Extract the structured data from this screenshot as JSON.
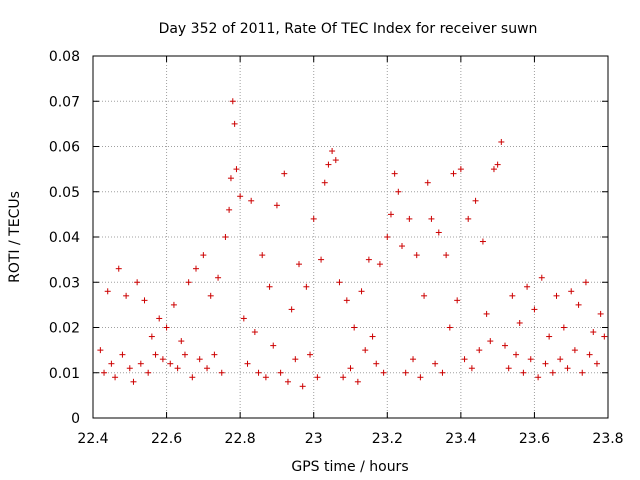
{
  "chart_data": {
    "type": "scatter",
    "title": "Day 352 of 2011, Rate Of TEC Index for receiver suwn",
    "xlabel": "GPS time / hours",
    "ylabel": "ROTI / TECUs",
    "xlim": [
      22.4,
      23.8
    ],
    "ylim": [
      0,
      0.08
    ],
    "xticks": [
      "22.4",
      "22.6",
      "22.8",
      "23",
      "23.2",
      "23.4",
      "23.6",
      "23.8"
    ],
    "yticks": [
      "0",
      "0.01",
      "0.02",
      "0.03",
      "0.04",
      "0.05",
      "0.06",
      "0.07",
      "0.08"
    ],
    "grid": true,
    "marker": "plus",
    "series_color": "#cc0000",
    "series": [
      {
        "points": [
          [
            22.42,
            0.015
          ],
          [
            22.43,
            0.01
          ],
          [
            22.44,
            0.028
          ],
          [
            22.45,
            0.012
          ],
          [
            22.46,
            0.009
          ],
          [
            22.47,
            0.033
          ],
          [
            22.48,
            0.014
          ],
          [
            22.49,
            0.027
          ],
          [
            22.5,
            0.011
          ],
          [
            22.51,
            0.008
          ],
          [
            22.52,
            0.03
          ],
          [
            22.53,
            0.012
          ],
          [
            22.54,
            0.026
          ],
          [
            22.55,
            0.01
          ],
          [
            22.56,
            0.018
          ],
          [
            22.57,
            0.014
          ],
          [
            22.58,
            0.022
          ],
          [
            22.59,
            0.013
          ],
          [
            22.6,
            0.02
          ],
          [
            22.61,
            0.012
          ],
          [
            22.62,
            0.025
          ],
          [
            22.63,
            0.011
          ],
          [
            22.64,
            0.017
          ],
          [
            22.65,
            0.014
          ],
          [
            22.66,
            0.03
          ],
          [
            22.67,
            0.009
          ],
          [
            22.68,
            0.033
          ],
          [
            22.69,
            0.013
          ],
          [
            22.7,
            0.036
          ],
          [
            22.71,
            0.011
          ],
          [
            22.72,
            0.027
          ],
          [
            22.73,
            0.014
          ],
          [
            22.74,
            0.031
          ],
          [
            22.75,
            0.01
          ],
          [
            22.76,
            0.04
          ],
          [
            22.77,
            0.046
          ],
          [
            22.775,
            0.053
          ],
          [
            22.78,
            0.07
          ],
          [
            22.785,
            0.065
          ],
          [
            22.79,
            0.055
          ],
          [
            22.8,
            0.049
          ],
          [
            22.81,
            0.022
          ],
          [
            22.82,
            0.012
          ],
          [
            22.83,
            0.048
          ],
          [
            22.84,
            0.019
          ],
          [
            22.85,
            0.01
          ],
          [
            22.86,
            0.036
          ],
          [
            22.87,
            0.009
          ],
          [
            22.88,
            0.029
          ],
          [
            22.89,
            0.016
          ],
          [
            22.9,
            0.047
          ],
          [
            22.91,
            0.01
          ],
          [
            22.92,
            0.054
          ],
          [
            22.93,
            0.008
          ],
          [
            22.94,
            0.024
          ],
          [
            22.95,
            0.013
          ],
          [
            22.96,
            0.034
          ],
          [
            22.97,
            0.007
          ],
          [
            22.98,
            0.029
          ],
          [
            22.99,
            0.014
          ],
          [
            23.0,
            0.044
          ],
          [
            23.01,
            0.009
          ],
          [
            23.02,
            0.035
          ],
          [
            23.03,
            0.052
          ],
          [
            23.04,
            0.056
          ],
          [
            23.05,
            0.059
          ],
          [
            23.06,
            0.057
          ],
          [
            23.07,
            0.03
          ],
          [
            23.08,
            0.009
          ],
          [
            23.09,
            0.026
          ],
          [
            23.1,
            0.011
          ],
          [
            23.11,
            0.02
          ],
          [
            23.12,
            0.008
          ],
          [
            23.13,
            0.028
          ],
          [
            23.14,
            0.015
          ],
          [
            23.15,
            0.035
          ],
          [
            23.16,
            0.018
          ],
          [
            23.17,
            0.012
          ],
          [
            23.18,
            0.034
          ],
          [
            23.19,
            0.01
          ],
          [
            23.2,
            0.04
          ],
          [
            23.21,
            0.045
          ],
          [
            23.22,
            0.054
          ],
          [
            23.23,
            0.05
          ],
          [
            23.24,
            0.038
          ],
          [
            23.25,
            0.01
          ],
          [
            23.26,
            0.044
          ],
          [
            23.27,
            0.013
          ],
          [
            23.28,
            0.036
          ],
          [
            23.29,
            0.009
          ],
          [
            23.3,
            0.027
          ],
          [
            23.31,
            0.052
          ],
          [
            23.32,
            0.044
          ],
          [
            23.33,
            0.012
          ],
          [
            23.34,
            0.041
          ],
          [
            23.35,
            0.01
          ],
          [
            23.36,
            0.036
          ],
          [
            23.37,
            0.02
          ],
          [
            23.38,
            0.054
          ],
          [
            23.39,
            0.026
          ],
          [
            23.4,
            0.055
          ],
          [
            23.41,
            0.013
          ],
          [
            23.42,
            0.044
          ],
          [
            23.43,
            0.011
          ],
          [
            23.44,
            0.048
          ],
          [
            23.45,
            0.015
          ],
          [
            23.46,
            0.039
          ],
          [
            23.47,
            0.023
          ],
          [
            23.48,
            0.017
          ],
          [
            23.49,
            0.055
          ],
          [
            23.5,
            0.056
          ],
          [
            23.51,
            0.061
          ],
          [
            23.52,
            0.016
          ],
          [
            23.53,
            0.011
          ],
          [
            23.54,
            0.027
          ],
          [
            23.55,
            0.014
          ],
          [
            23.56,
            0.021
          ],
          [
            23.57,
            0.01
          ],
          [
            23.58,
            0.029
          ],
          [
            23.59,
            0.013
          ],
          [
            23.6,
            0.024
          ],
          [
            23.61,
            0.009
          ],
          [
            23.62,
            0.031
          ],
          [
            23.63,
            0.012
          ],
          [
            23.64,
            0.018
          ],
          [
            23.65,
            0.01
          ],
          [
            23.66,
            0.027
          ],
          [
            23.67,
            0.013
          ],
          [
            23.68,
            0.02
          ],
          [
            23.69,
            0.011
          ],
          [
            23.7,
            0.028
          ],
          [
            23.71,
            0.015
          ],
          [
            23.72,
            0.025
          ],
          [
            23.73,
            0.01
          ],
          [
            23.74,
            0.03
          ],
          [
            23.75,
            0.014
          ],
          [
            23.76,
            0.019
          ],
          [
            23.77,
            0.012
          ],
          [
            23.78,
            0.023
          ],
          [
            23.79,
            0.018
          ]
        ]
      }
    ]
  }
}
